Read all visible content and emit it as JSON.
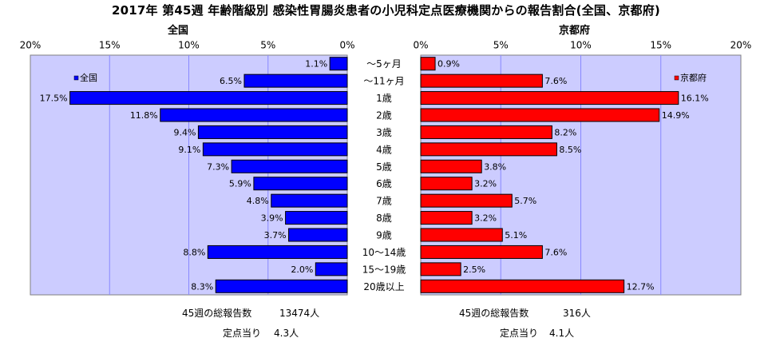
{
  "title": "2017年 第45週 年齢階級別 感染性胃腸炎患者の小児科定点医療機関からの報告割合(全国、京都府)",
  "national": {
    "panel_title": "全国",
    "total_label": "45週の総報告数",
    "total_value": "13474人",
    "per_site_label": "定点当り",
    "per_site_value": "4.3人"
  },
  "kyoto": {
    "panel_title": "京都府",
    "total_label": "45週の総報告数",
    "total_value": "316人",
    "per_site_label": "定点当り",
    "per_site_value": "4.1人"
  },
  "colors": {
    "national": "#0000ff",
    "kyoto": "#ff0000",
    "plot_bg": "#ccccff",
    "grid": "#8888ff"
  },
  "chart_data": [
    {
      "type": "bar",
      "orientation": "horizontal",
      "direction": "right-to-left",
      "title": "全国",
      "categories": [
        "～5ヶ月",
        "～11ヶ月",
        "1歳",
        "2歳",
        "3歳",
        "4歳",
        "5歳",
        "6歳",
        "7歳",
        "8歳",
        "9歳",
        "10～14歳",
        "15～19歳",
        "20歳以上"
      ],
      "series": [
        {
          "name": "全国",
          "values": [
            1.1,
            6.5,
            17.5,
            11.8,
            9.4,
            9.1,
            7.3,
            5.9,
            4.8,
            3.9,
            3.7,
            8.8,
            2.0,
            8.3
          ]
        }
      ],
      "data_labels": [
        "1.1%",
        "6.5%",
        "17.5%",
        "11.8%",
        "9.4%",
        "9.1%",
        "7.3%",
        "5.9%",
        "4.8%",
        "3.9%",
        "3.7%",
        "8.8%",
        "2.0%",
        "8.3%"
      ],
      "xlim": [
        0,
        20
      ],
      "tick_labels": [
        "20%",
        "15%",
        "10%",
        "5%",
        "0%"
      ],
      "legend": "top-left",
      "grid": true
    },
    {
      "type": "bar",
      "orientation": "horizontal",
      "direction": "left-to-right",
      "title": "京都府",
      "categories": [
        "～5ヶ月",
        "～11ヶ月",
        "1歳",
        "2歳",
        "3歳",
        "4歳",
        "5歳",
        "6歳",
        "7歳",
        "8歳",
        "9歳",
        "10～14歳",
        "15～19歳",
        "20歳以上"
      ],
      "series": [
        {
          "name": "京都府",
          "values": [
            0.9,
            7.6,
            16.1,
            14.9,
            8.2,
            8.5,
            3.8,
            3.2,
            5.7,
            3.2,
            5.1,
            7.6,
            2.5,
            12.7
          ]
        }
      ],
      "data_labels": [
        "0.9%",
        "7.6%",
        "16.1%",
        "14.9%",
        "8.2%",
        "8.5%",
        "3.8%",
        "3.2%",
        "5.7%",
        "3.2%",
        "5.1%",
        "7.6%",
        "2.5%",
        "12.7%"
      ],
      "xlim": [
        0,
        20
      ],
      "tick_labels": [
        "0%",
        "5%",
        "10%",
        "15%",
        "20%"
      ],
      "legend": "top-right",
      "grid": true
    }
  ]
}
